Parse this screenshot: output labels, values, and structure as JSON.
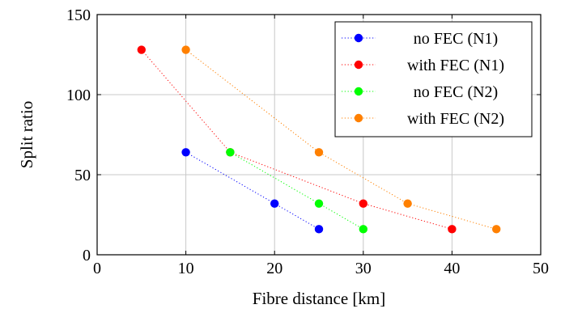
{
  "chart_data": {
    "type": "line",
    "title": "",
    "xlabel": "Fibre distance [km]",
    "ylabel": "Split ratio",
    "xlim": [
      0,
      50
    ],
    "ylim": [
      0,
      150
    ],
    "xticks": [
      0,
      10,
      20,
      30,
      40,
      50
    ],
    "yticks": [
      0,
      50,
      100,
      150
    ],
    "grid": true,
    "legend_position": "top-right",
    "line_style": "dotted",
    "series": [
      {
        "name": "no FEC (N1)",
        "color": "#0000ff",
        "x": [
          10,
          20,
          25
        ],
        "y": [
          64,
          32,
          16
        ]
      },
      {
        "name": "with FEC (N1)",
        "color": "#ff0000",
        "x": [
          5,
          15,
          30,
          40
        ],
        "y": [
          128,
          64,
          32,
          16
        ]
      },
      {
        "name": "no FEC (N2)",
        "color": "#00ff00",
        "x": [
          15,
          25,
          30
        ],
        "y": [
          64,
          32,
          16
        ]
      },
      {
        "name": "with FEC (N2)",
        "color": "#ff8000",
        "x": [
          10,
          25,
          35,
          45
        ],
        "y": [
          128,
          64,
          32,
          16
        ]
      }
    ]
  }
}
